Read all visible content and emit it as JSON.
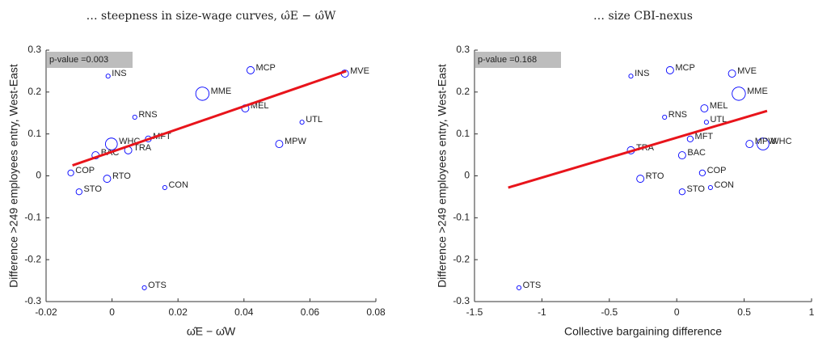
{
  "chart_data": [
    {
      "type": "scatter",
      "title": "… steepness in size-wage curves, ω̂E − ω̂W",
      "xlabel": "ω̂E − ω̂W",
      "ylabel": "Difference >249 employees entry, West-East",
      "annotation": "p-value =0.003",
      "labels": [
        "INS",
        "MCP",
        "MVE",
        "MME",
        "MEL",
        "RNS",
        "UTL",
        "WHC",
        "MFT",
        "TRA",
        "BAC",
        "MPW",
        "COP",
        "RTO",
        "STO",
        "CON",
        "OTS"
      ],
      "x": [
        -0.0012,
        0.042,
        0.0706,
        0.0274,
        0.0404,
        0.0069,
        0.0576,
        -0.0002,
        0.011,
        0.0049,
        -0.005,
        0.0507,
        -0.0125,
        -0.0015,
        -0.01,
        0.016,
        0.0098
      ],
      "y": [
        0.238,
        0.252,
        0.244,
        0.196,
        0.161,
        0.14,
        0.128,
        0.076,
        0.088,
        0.061,
        0.049,
        0.076,
        0.007,
        -0.007,
        -0.038,
        -0.028,
        -0.267
      ],
      "sizes": [
        1,
        3,
        3,
        10,
        3,
        1,
        1,
        8,
        2,
        3,
        3,
        3,
        2,
        3,
        2,
        1,
        1
      ],
      "color": "#0000ff",
      "fit": {
        "x": [
          -0.012,
          0.071
        ],
        "y": [
          0.025,
          0.25
        ],
        "color": "#e8141b"
      },
      "xlim": [
        -0.02,
        0.08
      ],
      "xticks": [
        -0.02,
        0,
        0.02,
        0.04,
        0.06,
        0.08
      ],
      "ylim": [
        -0.3,
        0.3
      ],
      "yticks": [
        -0.3,
        -0.2,
        -0.1,
        0,
        0.1,
        0.2,
        0.3
      ]
    },
    {
      "type": "scatter",
      "title": "… size CBI-nexus",
      "xlabel": "Collective bargaining difference",
      "ylabel": "Difference >249 employees entry, West-East",
      "annotation": "p-value =0.168",
      "labels": [
        "INS",
        "MCP",
        "MVE",
        "MME",
        "MEL",
        "RNS",
        "UTL",
        "WHC",
        "MFT",
        "TRA",
        "BAC",
        "MPW",
        "COP",
        "RTO",
        "STO",
        "CON",
        "OTS"
      ],
      "x": [
        -0.34,
        -0.05,
        0.41,
        0.46,
        0.205,
        -0.09,
        0.22,
        0.64,
        0.1,
        -0.34,
        0.04,
        0.54,
        0.19,
        -0.27,
        0.04,
        0.25,
        -1.17
      ],
      "y": [
        0.238,
        0.252,
        0.244,
        0.196,
        0.161,
        0.14,
        0.128,
        0.076,
        0.088,
        0.061,
        0.049,
        0.076,
        0.007,
        -0.007,
        -0.038,
        -0.028,
        -0.267
      ],
      "sizes": [
        1,
        3,
        3,
        10,
        3,
        1,
        1,
        8,
        2,
        3,
        3,
        3,
        2,
        3,
        2,
        1,
        1
      ],
      "color": "#0000ff",
      "fit": {
        "x": [
          -1.25,
          0.67
        ],
        "y": [
          -0.028,
          0.155
        ],
        "color": "#e8141b"
      },
      "xlim": [
        -1.5,
        1
      ],
      "xticks": [
        -1.5,
        -1,
        -0.5,
        0,
        0.5,
        1
      ],
      "ylim": [
        -0.3,
        0.3
      ],
      "yticks": [
        -0.3,
        -0.2,
        -0.1,
        0,
        0.1,
        0.2,
        0.3
      ]
    }
  ]
}
